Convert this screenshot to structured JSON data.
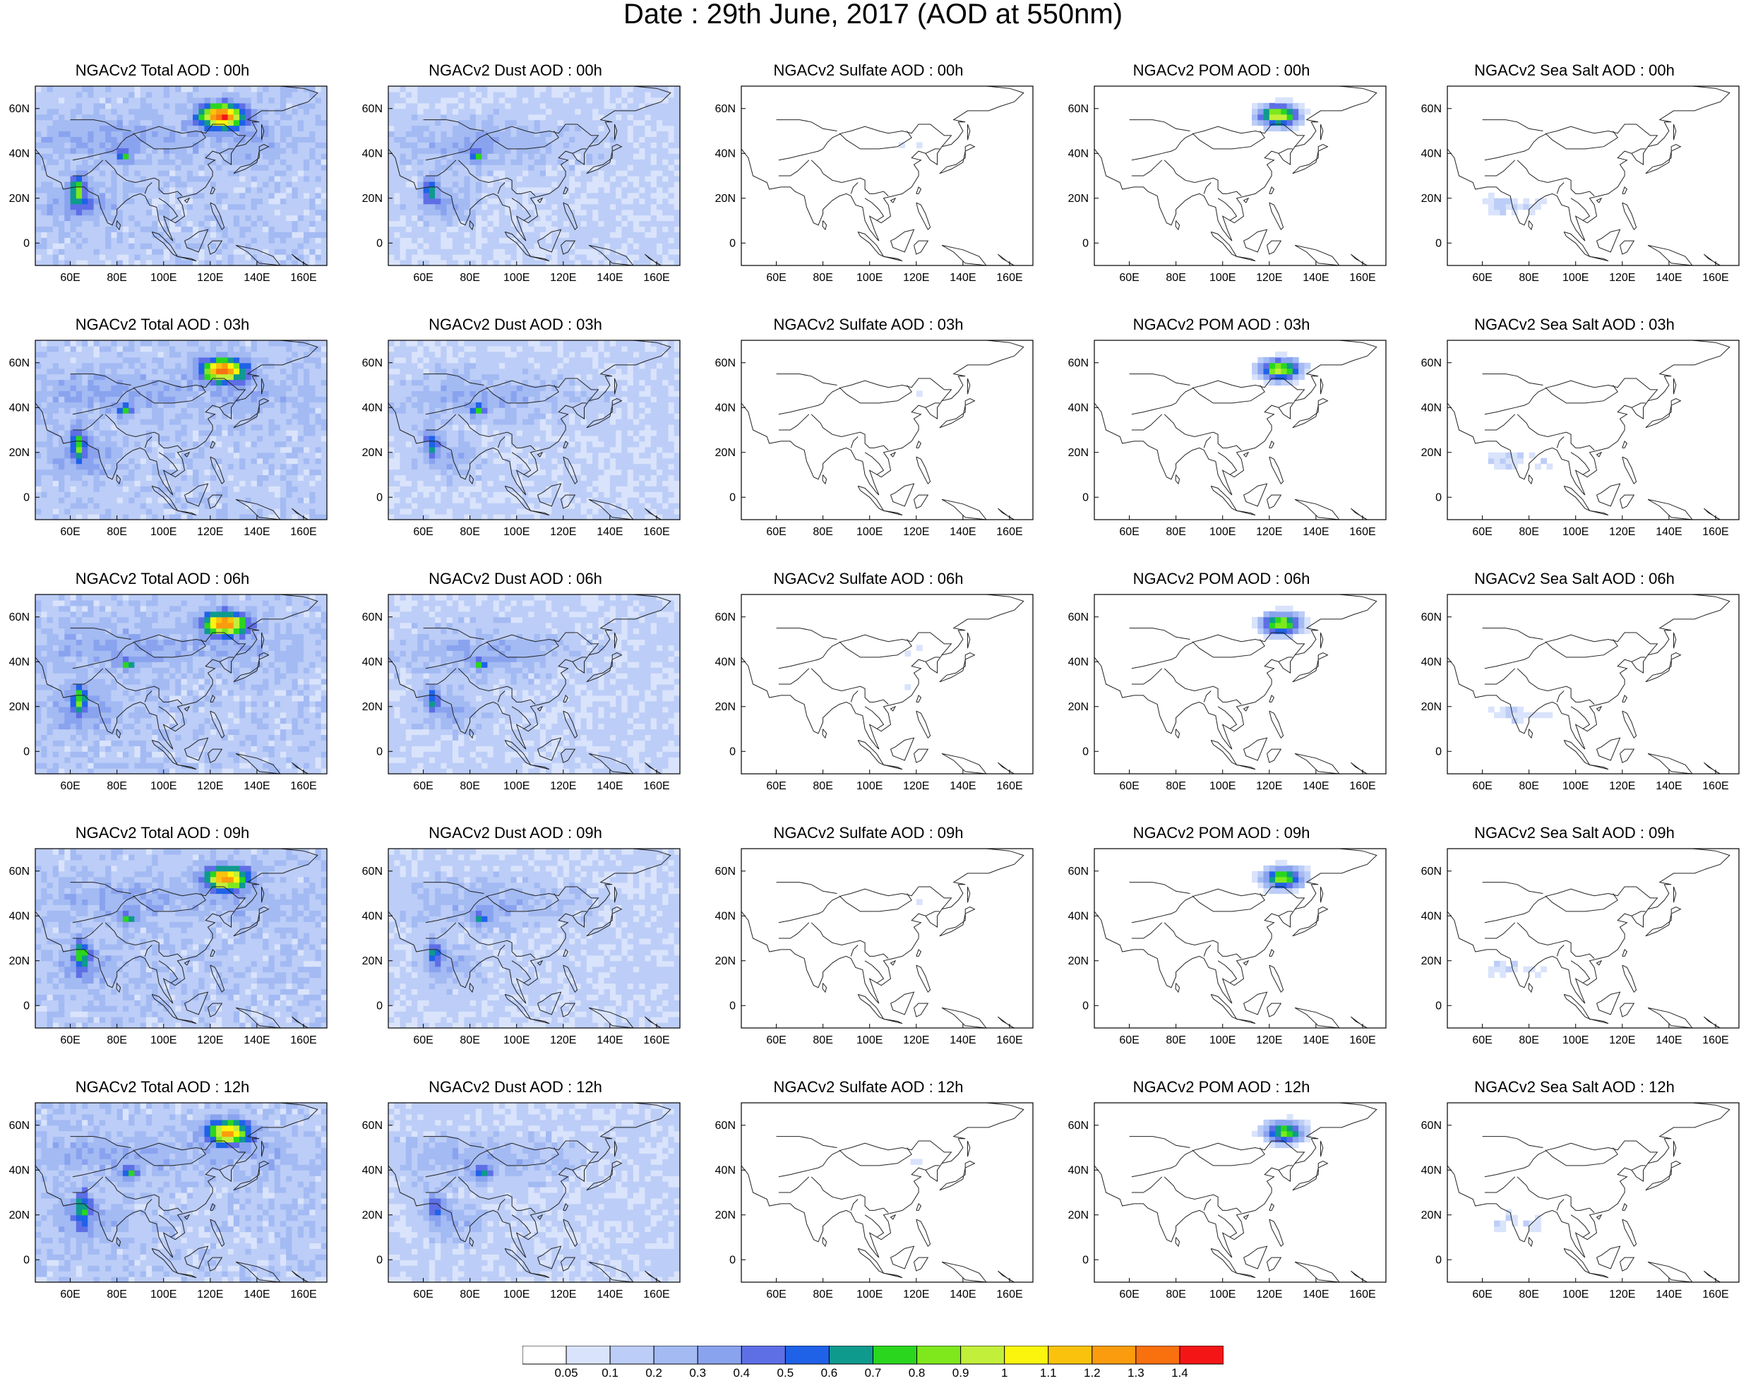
{
  "title": "Date : 29th June, 2017 (AOD at 550nm)",
  "species": [
    "Total",
    "Dust",
    "Sulfate",
    "POM",
    "Sea Salt"
  ],
  "panel_titles": [
    [
      "NGACv2 Total AOD : 00h",
      "NGACv2 Dust AOD : 00h",
      "NGACv2 Sulfate AOD : 00h",
      "NGACv2 POM AOD : 00h",
      "NGACv2 Sea Salt AOD : 00h"
    ],
    [
      "NGACv2 Total AOD : 03h",
      "NGACv2 Dust AOD : 03h",
      "NGACv2 Sulfate AOD : 03h",
      "NGACv2 POM AOD : 03h",
      "NGACv2 Sea Salt AOD : 03h"
    ],
    [
      "NGACv2 Total AOD : 06h",
      "NGACv2 Dust AOD : 06h",
      "NGACv2 Sulfate AOD : 06h",
      "NGACv2 POM AOD : 06h",
      "NGACv2 Sea Salt AOD : 06h"
    ],
    [
      "NGACv2 Total AOD : 09h",
      "NGACv2 Dust AOD : 09h",
      "NGACv2 Sulfate AOD : 09h",
      "NGACv2 POM AOD : 09h",
      "NGACv2 Sea Salt  AOD : 09h"
    ],
    [
      "NGACv2 Total AOD  : 12h",
      "NGACv2 Dust AOD : 12h",
      "NGACv2 Sulfate AOD : 12h",
      "NGACv2 POM  AOD : 12h",
      "NGACv2 Sea Salt  AOD : 12h"
    ]
  ],
  "x_ticks": [
    "60E",
    "80E",
    "100E",
    "120E",
    "140E",
    "160E"
  ],
  "y_ticks": [
    "60N",
    "40N",
    "20N",
    "0"
  ],
  "colorbar": {
    "labels": [
      "0.05",
      "0.1",
      "0.2",
      "0.3",
      "0.4",
      "0.5",
      "0.6",
      "0.7",
      "0.8",
      "0.9",
      "1",
      "1.1",
      "1.2",
      "1.3",
      "1.4"
    ],
    "colors": [
      "#ffffff",
      "#d9e3fb",
      "#bccdf7",
      "#a3baf3",
      "#8aa3ef",
      "#5e6fe6",
      "#1f62e8",
      "#0f9a8e",
      "#2ad61e",
      "#7ee81d",
      "#c2ef3a",
      "#fbf50e",
      "#fbc20d",
      "#fa9c0e",
      "#f9700f",
      "#f41616"
    ]
  },
  "colors": {
    "coastline": "#222222",
    "frame": "#000000"
  }
}
